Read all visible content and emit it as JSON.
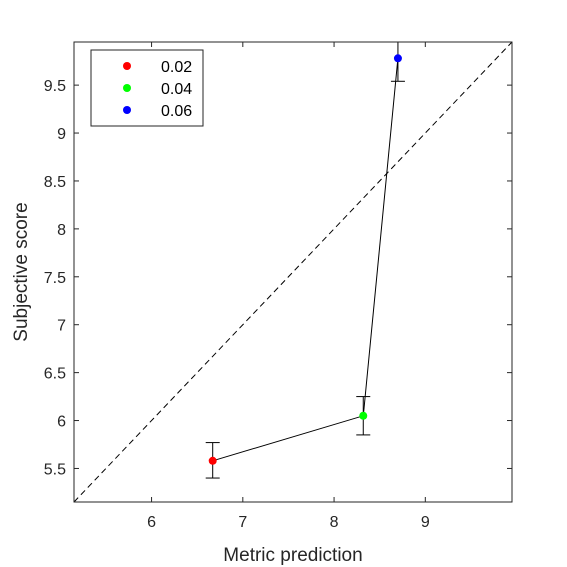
{
  "chart_data": {
    "type": "scatter",
    "xlabel": "Metric prediction",
    "ylabel": "Subjective score",
    "xlim": [
      5.15,
      9.95
    ],
    "ylim": [
      5.15,
      9.95
    ],
    "xticks": [
      "6",
      "7",
      "8",
      "9"
    ],
    "yticks": [
      "5.5",
      "6",
      "6.5",
      "7",
      "7.5",
      "8",
      "8.5",
      "9",
      "9.5"
    ],
    "grid": false,
    "legend_position": "top-left",
    "diagonal": "dashed y = x reference line",
    "series": [
      {
        "name": "0.02",
        "color": "#ff0000",
        "x": 6.67,
        "y": 5.58,
        "err_low": 5.4,
        "err_high": 5.77
      },
      {
        "name": "0.04",
        "color": "#00ff00",
        "x": 8.32,
        "y": 6.05,
        "err_low": 5.85,
        "err_high": 6.25
      },
      {
        "name": "0.06",
        "color": "#0000ff",
        "x": 8.7,
        "y": 9.78,
        "err_low": 9.54,
        "err_high": 9.95
      }
    ]
  }
}
